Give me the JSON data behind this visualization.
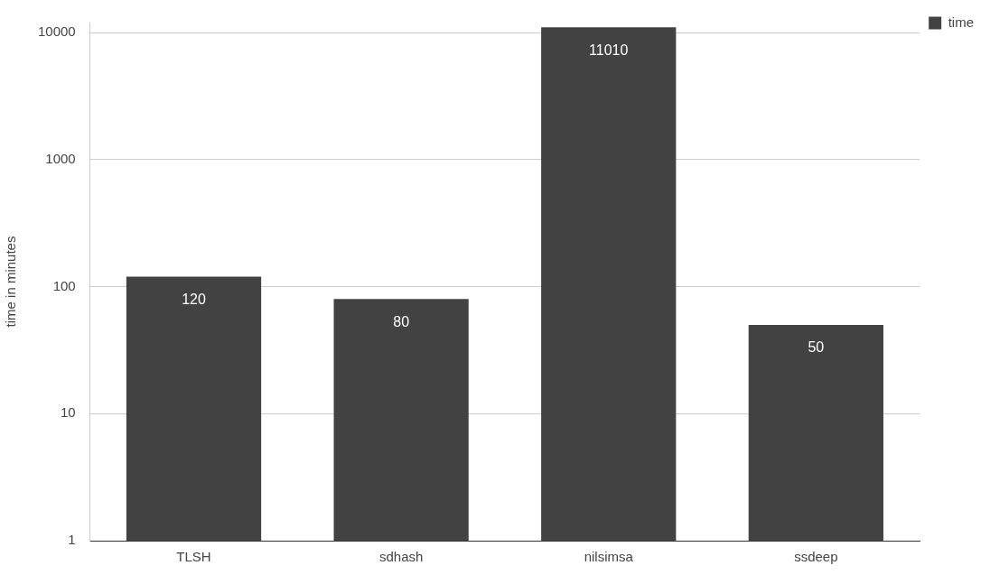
{
  "chart_data": {
    "type": "bar",
    "ylabel": "time in minutes",
    "categories": [
      "TLSH",
      "sdhash",
      "nilsimsa",
      "ssdeep"
    ],
    "series": [
      {
        "name": "time",
        "color": "#424242",
        "values": [
          120,
          80,
          11010,
          50
        ]
      }
    ],
    "log": true,
    "ylim": [
      1,
      12000
    ],
    "yticks": [
      1,
      10,
      100,
      1000,
      10000
    ],
    "grid": "y",
    "legend": "top right",
    "data_labels": true
  }
}
